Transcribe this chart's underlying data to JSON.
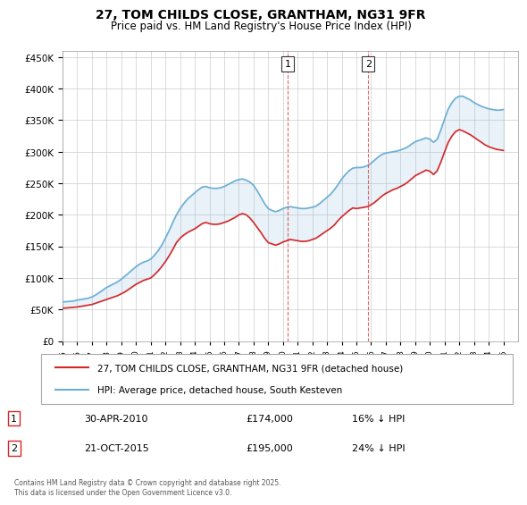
{
  "title": "27, TOM CHILDS CLOSE, GRANTHAM, NG31 9FR",
  "subtitle": "Price paid vs. HM Land Registry's House Price Index (HPI)",
  "ylabel_ticks": [
    "£0",
    "£50K",
    "£100K",
    "£150K",
    "£200K",
    "£250K",
    "£300K",
    "£350K",
    "£400K",
    "£450K"
  ],
  "ytick_values": [
    0,
    50000,
    100000,
    150000,
    200000,
    250000,
    300000,
    350000,
    400000,
    450000
  ],
  "ylim": [
    0,
    460000
  ],
  "xlim_start": 1995,
  "xlim_end": 2026,
  "marker1_x": 2010.33,
  "marker1_label": "1",
  "marker1_date": "30-APR-2010",
  "marker1_price": "£174,000",
  "marker1_hpi": "16% ↓ HPI",
  "marker2_x": 2015.8,
  "marker2_label": "2",
  "marker2_date": "21-OCT-2015",
  "marker2_price": "£195,000",
  "marker2_hpi": "24% ↓ HPI",
  "hpi_color": "#6baed6",
  "price_color": "#d62728",
  "marker_color": "#d62728",
  "background_color": "#ffffff",
  "grid_color": "#cccccc",
  "legend_line1": "27, TOM CHILDS CLOSE, GRANTHAM, NG31 9FR (detached house)",
  "legend_line2": "HPI: Average price, detached house, South Kesteven",
  "footnote": "Contains HM Land Registry data © Crown copyright and database right 2025.\nThis data is licensed under the Open Government Licence v3.0.",
  "hpi_data_x": [
    1995,
    1995.25,
    1995.5,
    1995.75,
    1996,
    1996.25,
    1996.5,
    1996.75,
    1997,
    1997.25,
    1997.5,
    1997.75,
    1998,
    1998.25,
    1998.5,
    1998.75,
    1999,
    1999.25,
    1999.5,
    1999.75,
    2000,
    2000.25,
    2000.5,
    2000.75,
    2001,
    2001.25,
    2001.5,
    2001.75,
    2002,
    2002.25,
    2002.5,
    2002.75,
    2003,
    2003.25,
    2003.5,
    2003.75,
    2004,
    2004.25,
    2004.5,
    2004.75,
    2005,
    2005.25,
    2005.5,
    2005.75,
    2006,
    2006.25,
    2006.5,
    2006.75,
    2007,
    2007.25,
    2007.5,
    2007.75,
    2008,
    2008.25,
    2008.5,
    2008.75,
    2009,
    2009.25,
    2009.5,
    2009.75,
    2010,
    2010.25,
    2010.5,
    2010.75,
    2011,
    2011.25,
    2011.5,
    2011.75,
    2012,
    2012.25,
    2012.5,
    2012.75,
    2013,
    2013.25,
    2013.5,
    2013.75,
    2014,
    2014.25,
    2014.5,
    2014.75,
    2015,
    2015.25,
    2015.5,
    2015.75,
    2016,
    2016.25,
    2016.5,
    2016.75,
    2017,
    2017.25,
    2017.5,
    2017.75,
    2018,
    2018.25,
    2018.5,
    2018.75,
    2019,
    2019.25,
    2019.5,
    2019.75,
    2020,
    2020.25,
    2020.5,
    2020.75,
    2021,
    2021.25,
    2021.5,
    2021.75,
    2022,
    2022.25,
    2022.5,
    2022.75,
    2023,
    2023.25,
    2023.5,
    2023.75,
    2024,
    2024.25,
    2024.5,
    2024.75,
    2025
  ],
  "hpi_data_y": [
    62000,
    62500,
    63000,
    63500,
    65000,
    66000,
    67000,
    68000,
    70000,
    73000,
    77000,
    81000,
    85000,
    88000,
    91000,
    94000,
    98000,
    103000,
    108000,
    113000,
    118000,
    122000,
    125000,
    127000,
    130000,
    136000,
    143000,
    152000,
    163000,
    175000,
    188000,
    200000,
    210000,
    218000,
    225000,
    230000,
    235000,
    240000,
    244000,
    245000,
    243000,
    242000,
    242000,
    243000,
    245000,
    248000,
    251000,
    254000,
    256000,
    257000,
    255000,
    252000,
    247000,
    238000,
    228000,
    218000,
    210000,
    207000,
    205000,
    207000,
    210000,
    212000,
    213000,
    212000,
    211000,
    210000,
    210000,
    211000,
    212000,
    214000,
    218000,
    223000,
    228000,
    233000,
    240000,
    248000,
    257000,
    264000,
    270000,
    274000,
    275000,
    275000,
    276000,
    278000,
    282000,
    287000,
    292000,
    296000,
    298000,
    299000,
    300000,
    301000,
    303000,
    305000,
    308000,
    312000,
    316000,
    318000,
    320000,
    322000,
    320000,
    315000,
    320000,
    335000,
    352000,
    368000,
    378000,
    385000,
    388000,
    388000,
    385000,
    382000,
    378000,
    375000,
    372000,
    370000,
    368000,
    367000,
    366000,
    366000,
    367000
  ],
  "price_data_x": [
    1995,
    1995.25,
    1995.5,
    1995.75,
    1996,
    1996.25,
    1996.5,
    1996.75,
    1997,
    1997.25,
    1997.5,
    1997.75,
    1998,
    1998.25,
    1998.5,
    1998.75,
    1999,
    1999.25,
    1999.5,
    1999.75,
    2000,
    2000.25,
    2000.5,
    2000.75,
    2001,
    2001.25,
    2001.5,
    2001.75,
    2002,
    2002.25,
    2002.5,
    2002.75,
    2003,
    2003.25,
    2003.5,
    2003.75,
    2004,
    2004.25,
    2004.5,
    2004.75,
    2005,
    2005.25,
    2005.5,
    2005.75,
    2006,
    2006.25,
    2006.5,
    2006.75,
    2007,
    2007.25,
    2007.5,
    2007.75,
    2008,
    2008.25,
    2008.5,
    2008.75,
    2009,
    2009.25,
    2009.5,
    2009.75,
    2010,
    2010.25,
    2010.5,
    2010.75,
    2011,
    2011.25,
    2011.5,
    2011.75,
    2012,
    2012.25,
    2012.5,
    2012.75,
    2013,
    2013.25,
    2013.5,
    2013.75,
    2014,
    2014.25,
    2014.5,
    2014.75,
    2015,
    2015.25,
    2015.5,
    2015.75,
    2016,
    2016.25,
    2016.5,
    2016.75,
    2017,
    2017.25,
    2017.5,
    2017.75,
    2018,
    2018.25,
    2018.5,
    2018.75,
    2019,
    2019.25,
    2019.5,
    2019.75,
    2020,
    2020.25,
    2020.5,
    2020.75,
    2021,
    2021.25,
    2021.5,
    2021.75,
    2022,
    2022.25,
    2022.5,
    2022.75,
    2023,
    2023.25,
    2023.5,
    2023.75,
    2024,
    2024.25,
    2024.5,
    2024.75,
    2025
  ],
  "price_data_y": [
    52000,
    52500,
    53000,
    53500,
    54000,
    55000,
    56000,
    57000,
    58000,
    60000,
    62000,
    64000,
    66000,
    68000,
    70000,
    72000,
    75000,
    78000,
    82000,
    86000,
    90000,
    93000,
    96000,
    98000,
    100000,
    105000,
    111000,
    118000,
    126000,
    135000,
    145000,
    156000,
    163000,
    168000,
    172000,
    175000,
    178000,
    182000,
    186000,
    188000,
    186000,
    185000,
    185000,
    186000,
    188000,
    190000,
    193000,
    196000,
    200000,
    202000,
    200000,
    195000,
    188000,
    180000,
    172000,
    163000,
    156000,
    154000,
    152000,
    154000,
    157000,
    159000,
    161000,
    160000,
    159000,
    158000,
    158000,
    159000,
    161000,
    163000,
    167000,
    171000,
    175000,
    179000,
    184000,
    191000,
    197000,
    202000,
    207000,
    211000,
    210000,
    211000,
    212000,
    213000,
    216000,
    220000,
    225000,
    230000,
    234000,
    237000,
    240000,
    242000,
    245000,
    248000,
    252000,
    257000,
    262000,
    265000,
    268000,
    271000,
    269000,
    264000,
    270000,
    284000,
    300000,
    315000,
    325000,
    332000,
    335000,
    333000,
    330000,
    327000,
    323000,
    319000,
    315000,
    311000,
    308000,
    306000,
    304000,
    303000,
    302000
  ]
}
